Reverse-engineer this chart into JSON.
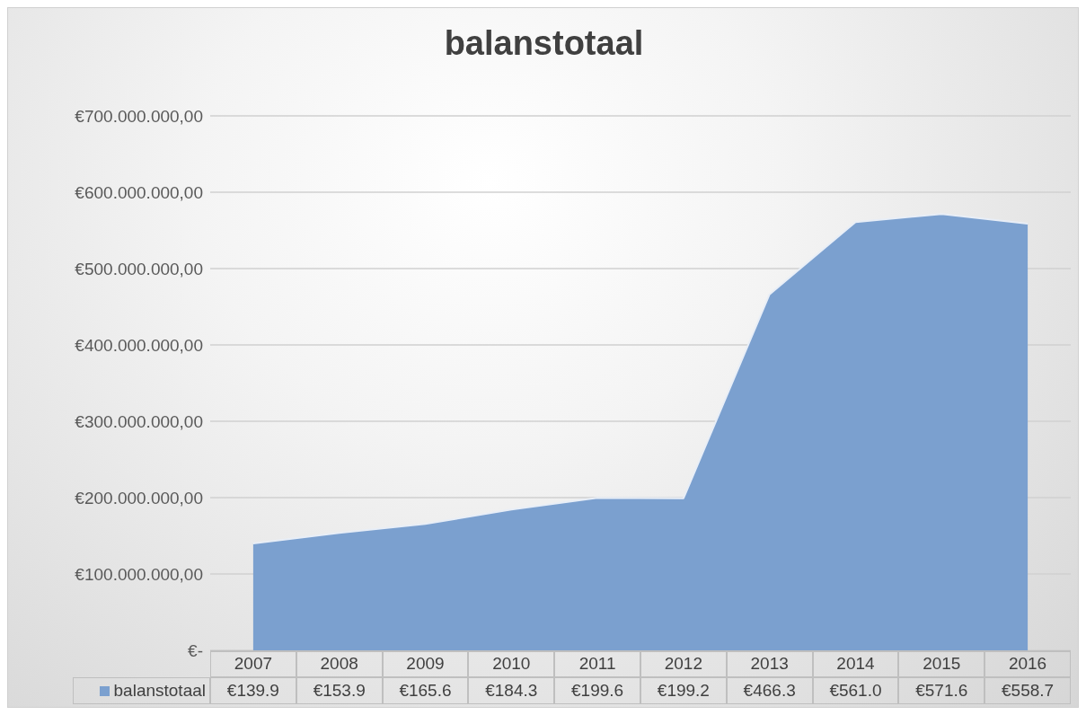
{
  "chart_data": {
    "type": "area",
    "title": "balanstotaal",
    "categories": [
      "2007",
      "2008",
      "2009",
      "2010",
      "2011",
      "2012",
      "2013",
      "2014",
      "2015",
      "2016"
    ],
    "series": [
      {
        "name": "balanstotaal",
        "color": "#7ba0cf",
        "values": [
          139900000,
          153900000,
          165600000,
          184300000,
          199600000,
          199200000,
          466300000,
          561000000,
          571600000,
          558700000
        ]
      }
    ],
    "annotations": [
      "€139.9",
      "€153.9",
      "€165.6",
      "€184.3",
      "€199.6",
      "€199.2",
      "€466.3",
      "€561.0",
      "€571.6",
      "€558.7"
    ],
    "ylim": [
      0,
      700000000
    ],
    "yticks": [
      {
        "value": 0,
        "label": "€-"
      },
      {
        "value": 100000000,
        "label": "€100.000.000,00"
      },
      {
        "value": 200000000,
        "label": "€200.000.000,00"
      },
      {
        "value": 300000000,
        "label": "€300.000.000,00"
      },
      {
        "value": 400000000,
        "label": "€400.000.000,00"
      },
      {
        "value": 500000000,
        "label": "€500.000.000,00"
      },
      {
        "value": 600000000,
        "label": "€600.000.000,00"
      },
      {
        "value": 700000000,
        "label": "€700.000.000,00"
      }
    ],
    "grid": "y",
    "legend": "bottom"
  }
}
